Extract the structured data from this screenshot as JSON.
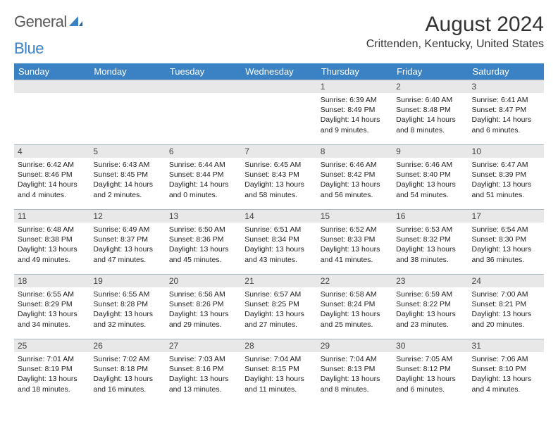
{
  "brand": {
    "part1": "General",
    "part2": "Blue"
  },
  "title": "August 2024",
  "subtitle": "Crittenden, Kentucky, United States",
  "colors": {
    "header_bg": "#3b82c4",
    "header_text": "#ffffff",
    "daynum_bg": "#e8e8e8",
    "border": "#aab8c2",
    "text": "#222222"
  },
  "dayNames": [
    "Sunday",
    "Monday",
    "Tuesday",
    "Wednesday",
    "Thursday",
    "Friday",
    "Saturday"
  ],
  "weeks": [
    [
      null,
      null,
      null,
      null,
      {
        "d": "1",
        "sr": "6:39 AM",
        "ss": "8:49 PM",
        "dl": "14 hours and 9 minutes."
      },
      {
        "d": "2",
        "sr": "6:40 AM",
        "ss": "8:48 PM",
        "dl": "14 hours and 8 minutes."
      },
      {
        "d": "3",
        "sr": "6:41 AM",
        "ss": "8:47 PM",
        "dl": "14 hours and 6 minutes."
      }
    ],
    [
      {
        "d": "4",
        "sr": "6:42 AM",
        "ss": "8:46 PM",
        "dl": "14 hours and 4 minutes."
      },
      {
        "d": "5",
        "sr": "6:43 AM",
        "ss": "8:45 PM",
        "dl": "14 hours and 2 minutes."
      },
      {
        "d": "6",
        "sr": "6:44 AM",
        "ss": "8:44 PM",
        "dl": "14 hours and 0 minutes."
      },
      {
        "d": "7",
        "sr": "6:45 AM",
        "ss": "8:43 PM",
        "dl": "13 hours and 58 minutes."
      },
      {
        "d": "8",
        "sr": "6:46 AM",
        "ss": "8:42 PM",
        "dl": "13 hours and 56 minutes."
      },
      {
        "d": "9",
        "sr": "6:46 AM",
        "ss": "8:40 PM",
        "dl": "13 hours and 54 minutes."
      },
      {
        "d": "10",
        "sr": "6:47 AM",
        "ss": "8:39 PM",
        "dl": "13 hours and 51 minutes."
      }
    ],
    [
      {
        "d": "11",
        "sr": "6:48 AM",
        "ss": "8:38 PM",
        "dl": "13 hours and 49 minutes."
      },
      {
        "d": "12",
        "sr": "6:49 AM",
        "ss": "8:37 PM",
        "dl": "13 hours and 47 minutes."
      },
      {
        "d": "13",
        "sr": "6:50 AM",
        "ss": "8:36 PM",
        "dl": "13 hours and 45 minutes."
      },
      {
        "d": "14",
        "sr": "6:51 AM",
        "ss": "8:34 PM",
        "dl": "13 hours and 43 minutes."
      },
      {
        "d": "15",
        "sr": "6:52 AM",
        "ss": "8:33 PM",
        "dl": "13 hours and 41 minutes."
      },
      {
        "d": "16",
        "sr": "6:53 AM",
        "ss": "8:32 PM",
        "dl": "13 hours and 38 minutes."
      },
      {
        "d": "17",
        "sr": "6:54 AM",
        "ss": "8:30 PM",
        "dl": "13 hours and 36 minutes."
      }
    ],
    [
      {
        "d": "18",
        "sr": "6:55 AM",
        "ss": "8:29 PM",
        "dl": "13 hours and 34 minutes."
      },
      {
        "d": "19",
        "sr": "6:55 AM",
        "ss": "8:28 PM",
        "dl": "13 hours and 32 minutes."
      },
      {
        "d": "20",
        "sr": "6:56 AM",
        "ss": "8:26 PM",
        "dl": "13 hours and 29 minutes."
      },
      {
        "d": "21",
        "sr": "6:57 AM",
        "ss": "8:25 PM",
        "dl": "13 hours and 27 minutes."
      },
      {
        "d": "22",
        "sr": "6:58 AM",
        "ss": "8:24 PM",
        "dl": "13 hours and 25 minutes."
      },
      {
        "d": "23",
        "sr": "6:59 AM",
        "ss": "8:22 PM",
        "dl": "13 hours and 23 minutes."
      },
      {
        "d": "24",
        "sr": "7:00 AM",
        "ss": "8:21 PM",
        "dl": "13 hours and 20 minutes."
      }
    ],
    [
      {
        "d": "25",
        "sr": "7:01 AM",
        "ss": "8:19 PM",
        "dl": "13 hours and 18 minutes."
      },
      {
        "d": "26",
        "sr": "7:02 AM",
        "ss": "8:18 PM",
        "dl": "13 hours and 16 minutes."
      },
      {
        "d": "27",
        "sr": "7:03 AM",
        "ss": "8:16 PM",
        "dl": "13 hours and 13 minutes."
      },
      {
        "d": "28",
        "sr": "7:04 AM",
        "ss": "8:15 PM",
        "dl": "13 hours and 11 minutes."
      },
      {
        "d": "29",
        "sr": "7:04 AM",
        "ss": "8:13 PM",
        "dl": "13 hours and 8 minutes."
      },
      {
        "d": "30",
        "sr": "7:05 AM",
        "ss": "8:12 PM",
        "dl": "13 hours and 6 minutes."
      },
      {
        "d": "31",
        "sr": "7:06 AM",
        "ss": "8:10 PM",
        "dl": "13 hours and 4 minutes."
      }
    ]
  ],
  "labels": {
    "sunrise": "Sunrise: ",
    "sunset": "Sunset: ",
    "daylight": "Daylight: "
  }
}
